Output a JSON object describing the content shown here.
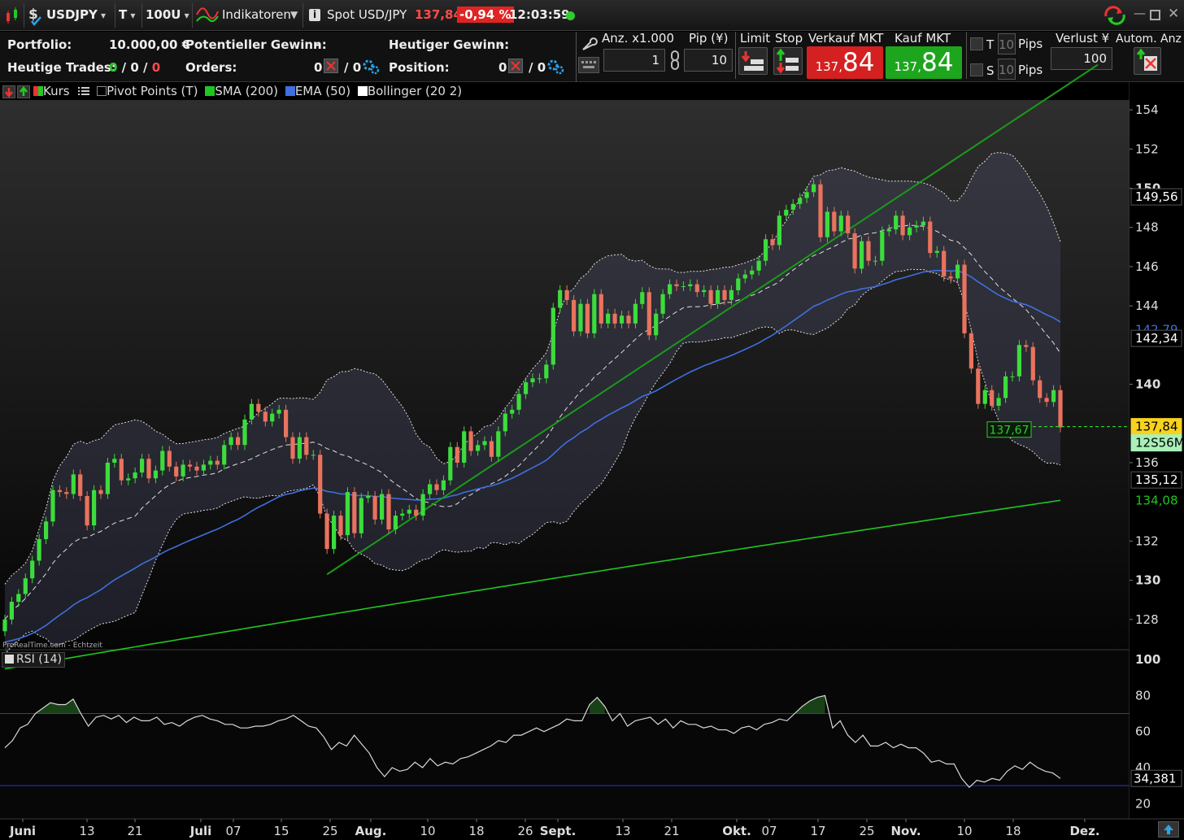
{
  "toolbar": {
    "symbol": "USDJPY",
    "timeframe": "T",
    "units": "100U",
    "indicators": "Indikatoren",
    "instrument": "Spot USD/JPY",
    "price": "137,84",
    "change": "-0,94 %",
    "time": "12:03:59",
    "colors": {
      "down": "#e04040",
      "up": "#22b822"
    }
  },
  "portfolio": {
    "portfolio_label": "Portfolio:",
    "portfolio_value": "10.000,00 €",
    "pot_gain_label": "Potentieller Gewinn:",
    "pot_gain_value": "-",
    "today_gain_label": "Heutiger Gewinn:",
    "today_gain_value": "-",
    "trades_label": "Heutige Trades:",
    "trades_a": "0",
    "trades_b": "0",
    "trades_c": "0",
    "orders_label": "Orders:",
    "orders_a": "0",
    "orders_b": "0",
    "position_label": "Position:",
    "position_a": "0",
    "position_b": "0"
  },
  "order": {
    "qty_label": "Anz. x1.000",
    "qty_value": "1",
    "pip_label": "Pip (¥)",
    "pip_value": "10",
    "limit_label": "Limit",
    "stop_label": "Stop",
    "sell_label": "Verkauf MKT",
    "buy_label": "Kauf MKT",
    "sell_small": "137,",
    "sell_big": "84",
    "buy_small": "137,",
    "buy_big": "84",
    "t_label": "T",
    "s_label": "S",
    "t_pips": "10",
    "s_pips": "10",
    "pips_label": "Pips",
    "loss_label": "Verlust ¥",
    "loss_value": "100",
    "auto_label": "Autom. Anz"
  },
  "legend": {
    "kurs": "Kurs",
    "pivot": "Pivot Points (T)",
    "sma": "SMA (200)",
    "ema": "EMA (50)",
    "bollinger": "Bollinger (20 2)",
    "rsi": "RSI (14)",
    "watermark": "ProRealTime.com - Echtzeit"
  },
  "chart_data": {
    "type": "candlestick",
    "symbol": "USDJPY",
    "y_ticks": [
      128,
      130,
      132,
      134,
      136,
      138,
      140,
      142,
      144,
      146,
      148,
      150,
      152,
      154
    ],
    "y_tick_labels": [
      "128",
      "130",
      "132",
      "136",
      "140",
      "144",
      "146",
      "148",
      "150",
      "152",
      "154"
    ],
    "ylim": [
      126.5,
      154.5
    ],
    "x_labels": [
      {
        "text": "Juni",
        "bold": true
      },
      {
        "text": "13"
      },
      {
        "text": "21"
      },
      {
        "text": "Juli",
        "bold": true
      },
      {
        "text": "07"
      },
      {
        "text": "15"
      },
      {
        "text": "25"
      },
      {
        "text": "Aug.",
        "bold": true
      },
      {
        "text": "10"
      },
      {
        "text": "18"
      },
      {
        "text": "26"
      },
      {
        "text": "Sept.",
        "bold": true
      },
      {
        "text": "13"
      },
      {
        "text": "21"
      },
      {
        "text": "Okt.",
        "bold": true
      },
      {
        "text": "07"
      },
      {
        "text": "17"
      },
      {
        "text": "25"
      },
      {
        "text": "Nov.",
        "bold": true
      },
      {
        "text": "10"
      },
      {
        "text": "18"
      },
      {
        "text": "Dez.",
        "bold": true
      }
    ],
    "candles": [
      {
        "o": 127.4,
        "c": 128.0
      },
      {
        "o": 128.0,
        "c": 128.9
      },
      {
        "o": 128.9,
        "c": 129.3
      },
      {
        "o": 129.3,
        "c": 130.1
      },
      {
        "o": 130.1,
        "c": 131.0
      },
      {
        "o": 131.0,
        "c": 132.1
      },
      {
        "o": 132.1,
        "c": 133.0
      },
      {
        "o": 133.0,
        "c": 134.6
      },
      {
        "o": 134.6,
        "c": 134.5
      },
      {
        "o": 134.5,
        "c": 134.4
      },
      {
        "o": 134.4,
        "c": 135.4
      },
      {
        "o": 135.4,
        "c": 134.3
      },
      {
        "o": 134.3,
        "c": 132.8
      },
      {
        "o": 132.8,
        "c": 134.6
      },
      {
        "o": 134.6,
        "c": 134.4
      },
      {
        "o": 134.4,
        "c": 136.0
      },
      {
        "o": 136.0,
        "c": 136.2
      },
      {
        "o": 136.2,
        "c": 135.1
      },
      {
        "o": 135.1,
        "c": 135.2
      },
      {
        "o": 135.2,
        "c": 135.5
      },
      {
        "o": 135.5,
        "c": 136.2
      },
      {
        "o": 136.2,
        "c": 135.2
      },
      {
        "o": 135.2,
        "c": 135.6
      },
      {
        "o": 135.6,
        "c": 136.6
      },
      {
        "o": 136.6,
        "c": 135.8
      },
      {
        "o": 135.8,
        "c": 135.3
      },
      {
        "o": 135.3,
        "c": 135.9
      },
      {
        "o": 135.9,
        "c": 135.8
      },
      {
        "o": 135.8,
        "c": 135.6
      },
      {
        "o": 135.6,
        "c": 135.9
      },
      {
        "o": 135.9,
        "c": 136.1
      },
      {
        "o": 136.1,
        "c": 135.9
      },
      {
        "o": 135.9,
        "c": 136.9
      },
      {
        "o": 136.9,
        "c": 137.3
      },
      {
        "o": 137.3,
        "c": 136.9
      },
      {
        "o": 136.9,
        "c": 138.2
      },
      {
        "o": 138.2,
        "c": 139.0
      },
      {
        "o": 139.0,
        "c": 138.6
      },
      {
        "o": 138.6,
        "c": 138.1
      },
      {
        "o": 138.1,
        "c": 138.5
      },
      {
        "o": 138.5,
        "c": 138.7
      },
      {
        "o": 138.7,
        "c": 137.3
      },
      {
        "o": 137.3,
        "c": 136.2
      },
      {
        "o": 136.2,
        "c": 137.3
      },
      {
        "o": 137.3,
        "c": 136.4
      },
      {
        "o": 136.4,
        "c": 136.4
      },
      {
        "o": 136.4,
        "c": 133.4
      },
      {
        "o": 133.4,
        "c": 131.6
      },
      {
        "o": 131.6,
        "c": 133.3
      },
      {
        "o": 133.3,
        "c": 132.3
      },
      {
        "o": 132.3,
        "c": 134.5
      },
      {
        "o": 134.5,
        "c": 132.4
      },
      {
        "o": 132.4,
        "c": 134.2
      },
      {
        "o": 134.2,
        "c": 134.3
      },
      {
        "o": 134.3,
        "c": 133.1
      },
      {
        "o": 133.1,
        "c": 134.4
      },
      {
        "o": 134.4,
        "c": 132.6
      },
      {
        "o": 132.6,
        "c": 133.3
      },
      {
        "o": 133.3,
        "c": 133.4
      },
      {
        "o": 133.4,
        "c": 133.6
      },
      {
        "o": 133.6,
        "c": 133.3
      },
      {
        "o": 133.3,
        "c": 134.4
      },
      {
        "o": 134.4,
        "c": 134.9
      },
      {
        "o": 134.9,
        "c": 134.6
      },
      {
        "o": 134.6,
        "c": 135.1
      },
      {
        "o": 135.1,
        "c": 136.8
      },
      {
        "o": 136.8,
        "c": 136.0
      },
      {
        "o": 136.0,
        "c": 137.6
      },
      {
        "o": 137.6,
        "c": 136.6
      },
      {
        "o": 136.6,
        "c": 136.9
      },
      {
        "o": 136.9,
        "c": 137.1
      },
      {
        "o": 137.1,
        "c": 136.3
      },
      {
        "o": 136.3,
        "c": 137.6
      },
      {
        "o": 137.6,
        "c": 138.5
      },
      {
        "o": 138.5,
        "c": 138.7
      },
      {
        "o": 138.7,
        "c": 139.5
      },
      {
        "o": 139.5,
        "c": 140.1
      },
      {
        "o": 140.1,
        "c": 140.3
      },
      {
        "o": 140.3,
        "c": 140.3
      },
      {
        "o": 140.3,
        "c": 141.0
      },
      {
        "o": 141.0,
        "c": 143.9
      },
      {
        "o": 143.9,
        "c": 144.8
      },
      {
        "o": 144.8,
        "c": 144.3
      },
      {
        "o": 144.3,
        "c": 142.7
      },
      {
        "o": 142.7,
        "c": 144.1
      },
      {
        "o": 144.1,
        "c": 142.6
      },
      {
        "o": 142.6,
        "c": 144.6
      },
      {
        "o": 144.6,
        "c": 143.1
      },
      {
        "o": 143.1,
        "c": 143.6
      },
      {
        "o": 143.6,
        "c": 143.1
      },
      {
        "o": 143.1,
        "c": 143.5
      },
      {
        "o": 143.5,
        "c": 143.1
      },
      {
        "o": 143.1,
        "c": 144.1
      },
      {
        "o": 144.1,
        "c": 144.7
      },
      {
        "o": 144.7,
        "c": 142.5
      },
      {
        "o": 142.5,
        "c": 143.6
      },
      {
        "o": 143.6,
        "c": 144.6
      },
      {
        "o": 144.6,
        "c": 145.1
      },
      {
        "o": 145.1,
        "c": 145.0
      },
      {
        "o": 145.0,
        "c": 145.0
      },
      {
        "o": 145.0,
        "c": 145.1
      },
      {
        "o": 145.1,
        "c": 144.7
      },
      {
        "o": 144.7,
        "c": 144.8
      },
      {
        "o": 144.8,
        "c": 144.1
      },
      {
        "o": 144.1,
        "c": 144.8
      },
      {
        "o": 144.8,
        "c": 144.3
      },
      {
        "o": 144.3,
        "c": 144.8
      },
      {
        "o": 144.8,
        "c": 145.4
      },
      {
        "o": 145.4,
        "c": 145.6
      },
      {
        "o": 145.6,
        "c": 145.8
      },
      {
        "o": 145.8,
        "c": 146.3
      },
      {
        "o": 146.3,
        "c": 147.4
      },
      {
        "o": 147.4,
        "c": 147.1
      },
      {
        "o": 147.1,
        "c": 148.6
      },
      {
        "o": 148.6,
        "c": 148.9
      },
      {
        "o": 148.9,
        "c": 149.2
      },
      {
        "o": 149.2,
        "c": 149.5
      },
      {
        "o": 149.5,
        "c": 149.8
      },
      {
        "o": 149.8,
        "c": 150.2
      },
      {
        "o": 150.2,
        "c": 147.5
      },
      {
        "o": 147.5,
        "c": 148.8
      },
      {
        "o": 148.8,
        "c": 147.8
      },
      {
        "o": 147.8,
        "c": 148.6
      },
      {
        "o": 148.6,
        "c": 147.7
      },
      {
        "o": 147.7,
        "c": 145.9
      },
      {
        "o": 145.9,
        "c": 147.3
      },
      {
        "o": 147.3,
        "c": 146.3
      },
      {
        "o": 146.3,
        "c": 146.3
      },
      {
        "o": 146.3,
        "c": 147.8
      },
      {
        "o": 147.8,
        "c": 147.9
      },
      {
        "o": 147.9,
        "c": 148.6
      },
      {
        "o": 148.6,
        "c": 147.6
      },
      {
        "o": 147.6,
        "c": 148.0
      },
      {
        "o": 148.0,
        "c": 148.1
      },
      {
        "o": 148.1,
        "c": 148.3
      },
      {
        "o": 148.3,
        "c": 146.7
      },
      {
        "o": 146.7,
        "c": 146.8
      },
      {
        "o": 146.8,
        "c": 145.5
      },
      {
        "o": 145.5,
        "c": 145.4
      },
      {
        "o": 145.4,
        "c": 146.1
      },
      {
        "o": 146.1,
        "c": 142.6
      },
      {
        "o": 142.6,
        "c": 140.8
      },
      {
        "o": 140.8,
        "c": 139.0
      },
      {
        "o": 139.0,
        "c": 139.7
      },
      {
        "o": 139.7,
        "c": 138.9
      },
      {
        "o": 138.9,
        "c": 139.3
      },
      {
        "o": 139.3,
        "c": 140.4
      },
      {
        "o": 140.4,
        "c": 140.4
      },
      {
        "o": 140.4,
        "c": 142.0
      },
      {
        "o": 142.0,
        "c": 141.9
      },
      {
        "o": 141.9,
        "c": 140.2
      },
      {
        "o": 140.2,
        "c": 139.3
      },
      {
        "o": 139.3,
        "c": 139.1
      },
      {
        "o": 139.1,
        "c": 139.7
      },
      {
        "o": 139.7,
        "c": 137.8
      }
    ],
    "price_tags": [
      {
        "text": "149,56",
        "value": 149.56,
        "style": "white"
      },
      {
        "text": "142,79",
        "value": 142.79,
        "style": "ema"
      },
      {
        "text": "142,34",
        "value": 142.34,
        "style": "white"
      },
      {
        "text": "137,84",
        "value": 137.84,
        "style": "last"
      },
      {
        "text": "12S56M",
        "value": 137.2,
        "style": "timer"
      },
      {
        "text": "135,12",
        "value": 135.12,
        "style": "white"
      },
      {
        "text": "134,08",
        "value": 134.08,
        "style": "sma"
      }
    ],
    "low_tag": {
      "text": "137,67",
      "value": 137.67
    },
    "rsi": {
      "name": "RSI (14)",
      "ticks": [
        100,
        80,
        60,
        40,
        20
      ],
      "ylim": [
        12,
        105
      ],
      "upper": 70,
      "lower": 30,
      "last": "34,381",
      "values": [
        51,
        55,
        62,
        64,
        70,
        73,
        76,
        75,
        75,
        78,
        70,
        63,
        68,
        69,
        67,
        69,
        65,
        68,
        66,
        66,
        68,
        64,
        65,
        63,
        66,
        68,
        69,
        67,
        66,
        64,
        64,
        62,
        62,
        63,
        63,
        64,
        66,
        67,
        69,
        66,
        63,
        62,
        57,
        50,
        54,
        52,
        58,
        53,
        48,
        40,
        35,
        40,
        38,
        39,
        43,
        40,
        45,
        41,
        43,
        42,
        45,
        46,
        48,
        50,
        52,
        55,
        54,
        58,
        58,
        60,
        62,
        60,
        62,
        64,
        67,
        66,
        66,
        75,
        79,
        74,
        66,
        70,
        63,
        66,
        67,
        68,
        64,
        67,
        62,
        66,
        64,
        64,
        62,
        63,
        61,
        61,
        59,
        62,
        63,
        61,
        64,
        65,
        67,
        66,
        70,
        74,
        77,
        79,
        80,
        62,
        66,
        58,
        54,
        58,
        52,
        52,
        54,
        51,
        53,
        51,
        51,
        48,
        43,
        44,
        42,
        42,
        34,
        29,
        33,
        32,
        34,
        33,
        38,
        41,
        39,
        43,
        40,
        38,
        37,
        34
      ]
    },
    "colors": {
      "up": "#3cdc3c",
      "down": "#e8735e",
      "sma": "#1fc61f",
      "ema": "#3f6fe0",
      "bollinger": "#e0e0e0",
      "trend": "#1a9a1a",
      "rsi_line": "#d8d8d8",
      "rsi_level": "#2b3bc8"
    }
  }
}
